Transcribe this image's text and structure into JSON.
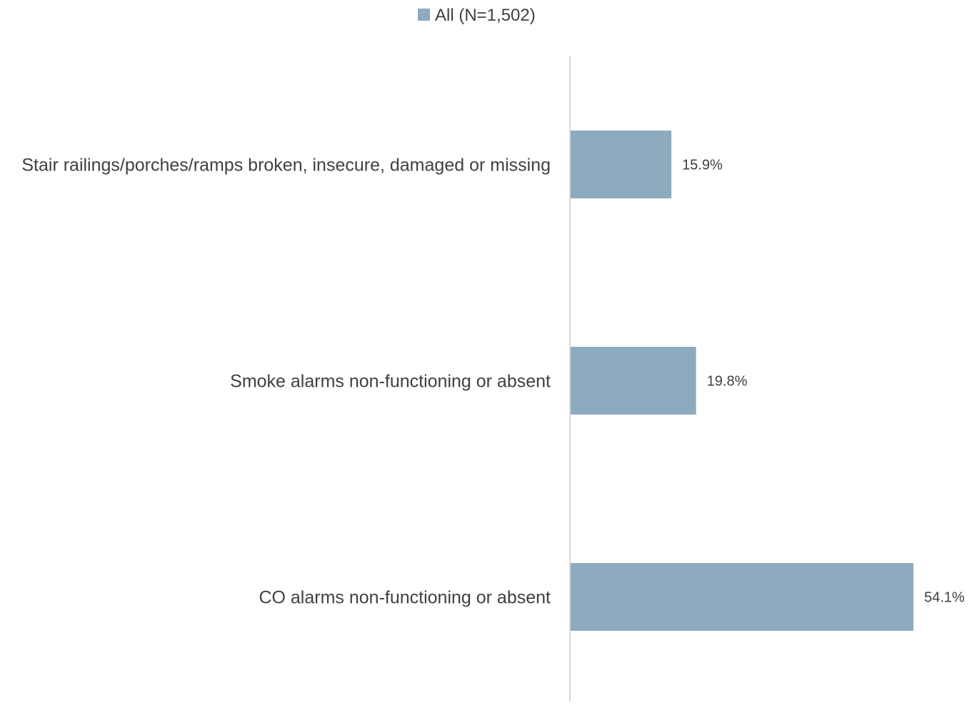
{
  "chart_data": {
    "type": "bar",
    "orientation": "horizontal",
    "categories": [
      "Stair railings/porches/ramps broken, insecure, damaged or missing",
      "Smoke alarms non-functioning or absent",
      "CO alarms non-functioning or absent"
    ],
    "series": [
      {
        "name": "All (N=1,502)",
        "values": [
          15.9,
          19.8,
          54.1
        ],
        "value_labels": [
          "15.9%",
          "19.8%",
          "54.1%"
        ],
        "color": "#8eaabe"
      }
    ],
    "xlim": [
      0,
      55
    ],
    "grid": false,
    "legend_position": "top-center",
    "axis_line_color": "#d9d9d9",
    "label_color": "#404040"
  }
}
